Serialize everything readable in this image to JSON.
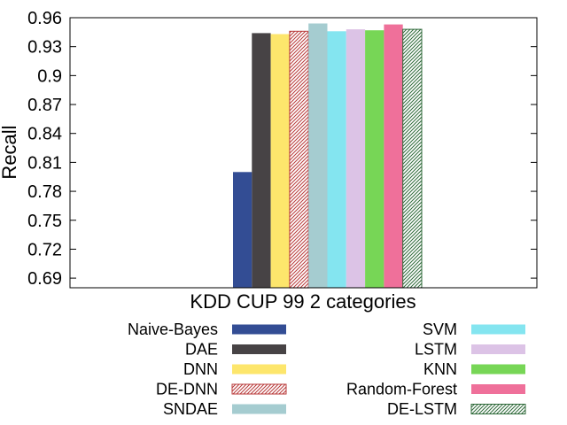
{
  "chart_data": {
    "type": "bar",
    "categories": [
      "KDD CUP 99 2 categories"
    ],
    "ylabel": "Recall",
    "xlabel": "",
    "ylim": [
      0.68,
      0.96
    ],
    "yticks": [
      "0.69",
      "0.72",
      "0.75",
      "0.78",
      "0.81",
      "0.84",
      "0.87",
      "0.9",
      "0.93",
      "0.96"
    ],
    "grid": false,
    "legend_placement": "bottom",
    "series": [
      {
        "name": "Naive-Bayes",
        "values": [
          0.8
        ],
        "color": "#334d94",
        "pattern": "solid"
      },
      {
        "name": "DAE",
        "values": [
          0.944
        ],
        "color": "#474345",
        "pattern": "solid"
      },
      {
        "name": "DNN",
        "values": [
          0.943
        ],
        "color": "#fde66c",
        "pattern": "solid"
      },
      {
        "name": "DE-DNN",
        "values": [
          0.946
        ],
        "color": "#b83a3a",
        "pattern": "hatch"
      },
      {
        "name": "SNDAE",
        "values": [
          0.954
        ],
        "color": "#a5ccd0",
        "pattern": "solid"
      },
      {
        "name": "SVM",
        "values": [
          0.946
        ],
        "color": "#84e5f0",
        "pattern": "solid"
      },
      {
        "name": "LSTM",
        "values": [
          0.948
        ],
        "color": "#dcc3e6",
        "pattern": "solid"
      },
      {
        "name": "KNN",
        "values": [
          0.947
        ],
        "color": "#77d656",
        "pattern": "solid"
      },
      {
        "name": "Random-Forest",
        "values": [
          0.953
        ],
        "color": "#ef709a",
        "pattern": "solid"
      },
      {
        "name": "DE-LSTM",
        "values": [
          0.948
        ],
        "color": "#2f6a3a",
        "pattern": "hatch"
      }
    ]
  }
}
